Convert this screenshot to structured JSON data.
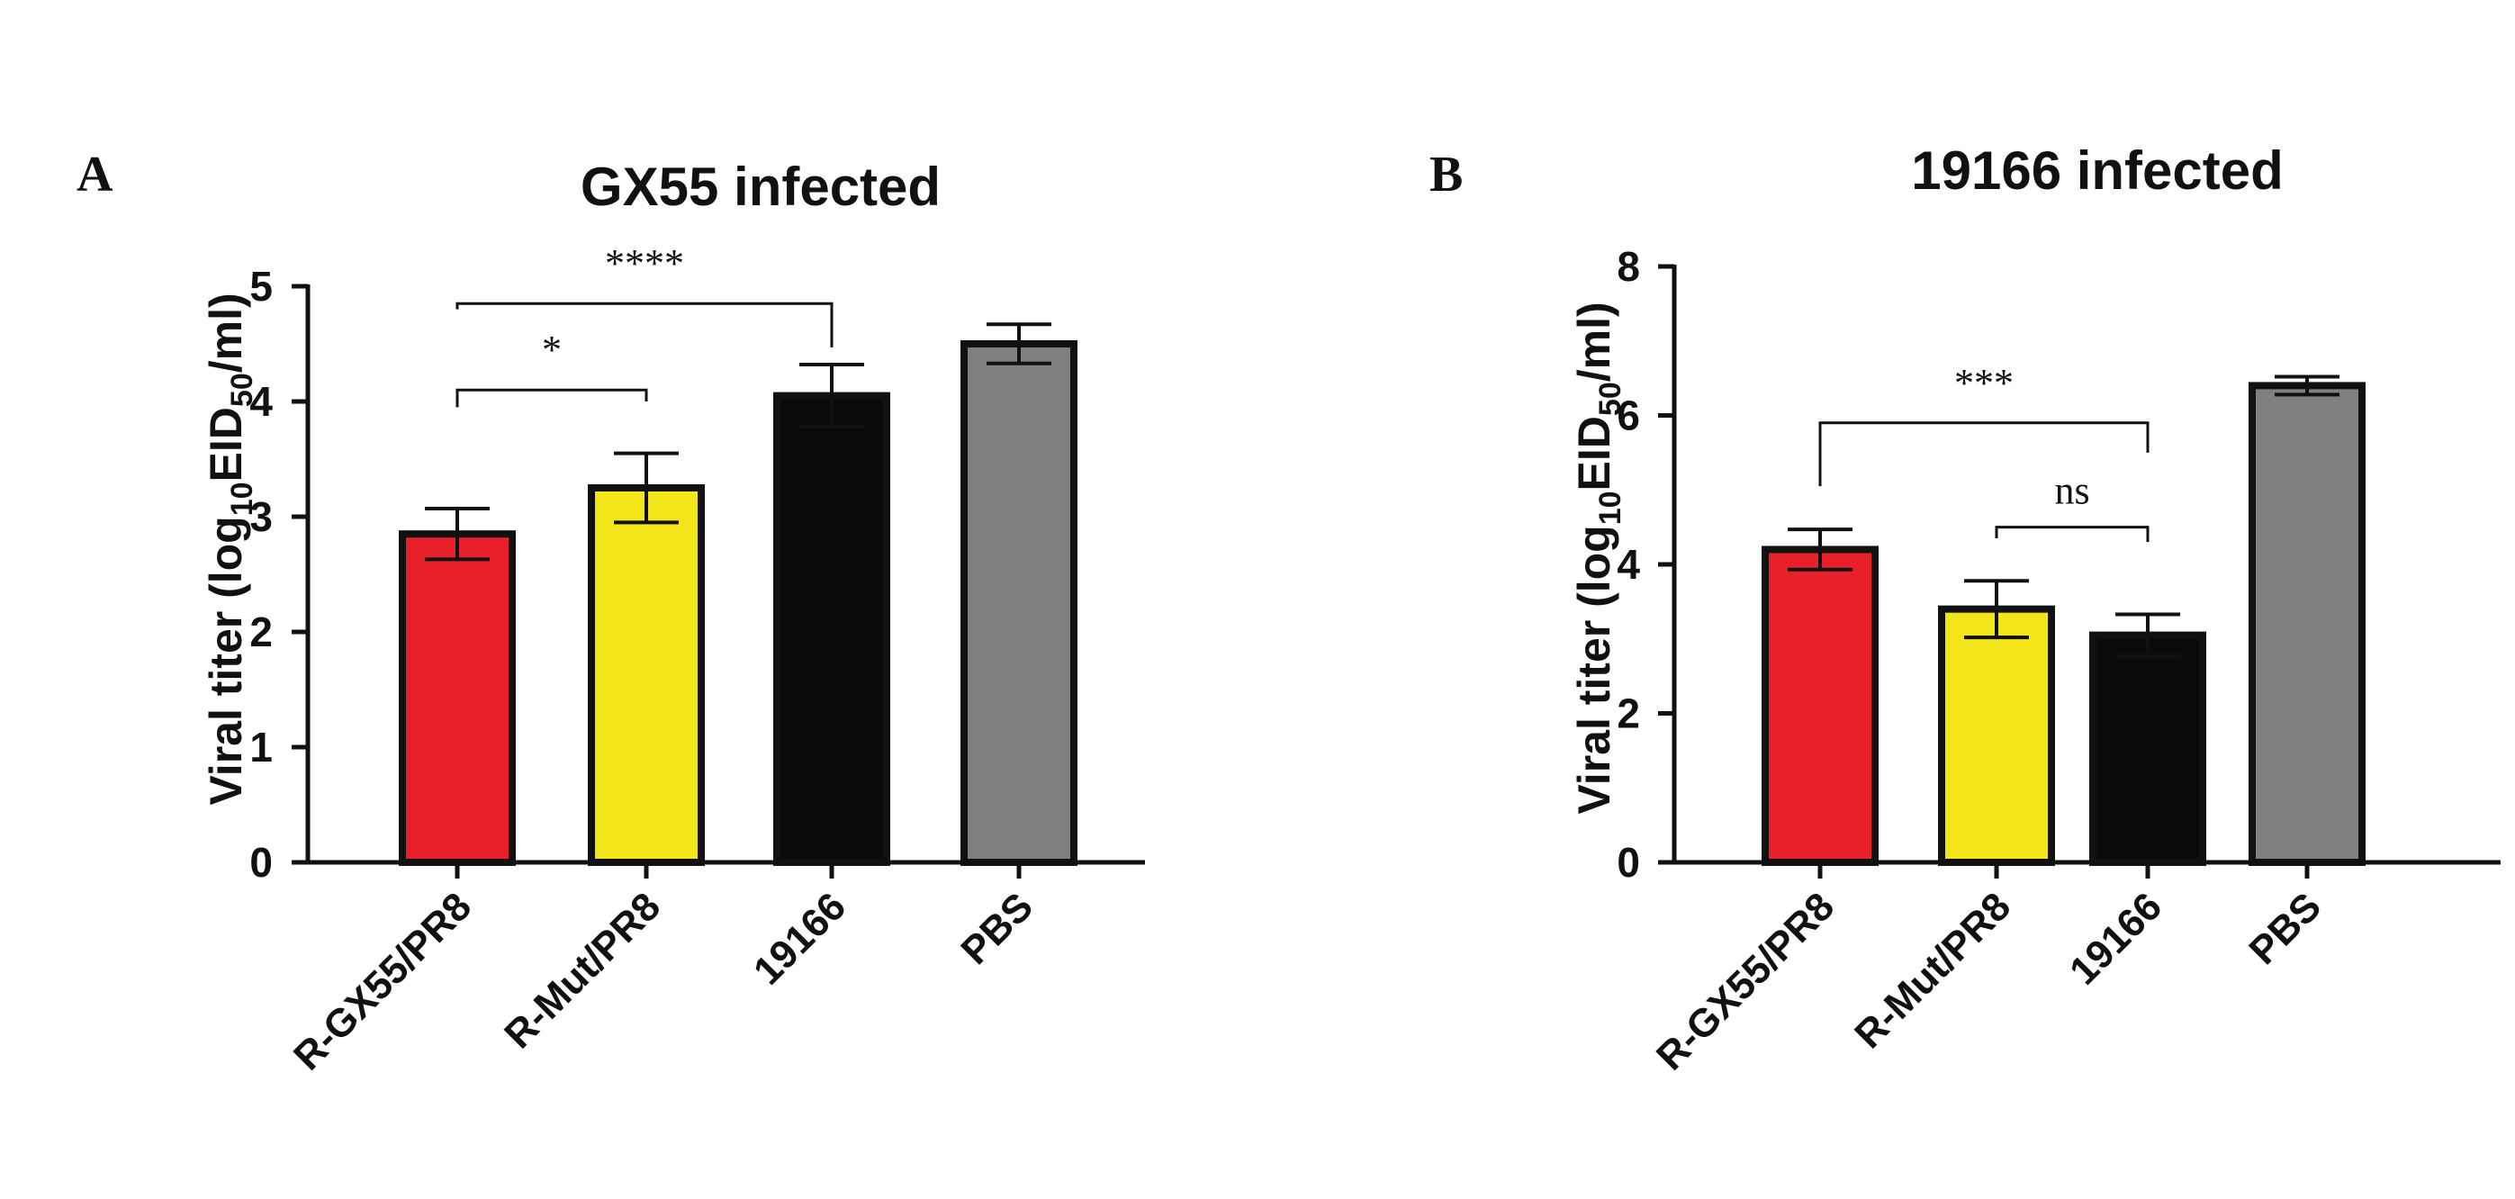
{
  "chart_data": [
    {
      "type": "bar",
      "panel": "A",
      "title": "GX55 infected",
      "ylabel_prefix": "Viral titer (log",
      "ylabel_sub1": "10",
      "ylabel_mid": "EID",
      "ylabel_sub2": "50",
      "ylabel_suffix": "/ml)",
      "ylim": [
        0,
        5
      ],
      "yticks": [
        0,
        1,
        2,
        3,
        4,
        5
      ],
      "categories": [
        "R-GX55/PR8",
        "R-Mut/PR8",
        "19166",
        "PBS"
      ],
      "values": [
        2.85,
        3.25,
        4.05,
        4.5
      ],
      "errors": [
        0.22,
        0.3,
        0.27,
        0.17
      ],
      "colors": [
        "#e8202a",
        "#f2e61a",
        "#0a0a0a",
        "#808080"
      ],
      "significance": [
        {
          "from": 0,
          "to": 2,
          "label": "****",
          "y": 4.85,
          "drop_left": 0.05,
          "drop_right": 0.38
        },
        {
          "from": 0,
          "to": 1,
          "label": "*",
          "y": 4.1,
          "drop_left": 0.15,
          "drop_right": 0.1
        }
      ]
    },
    {
      "type": "bar",
      "panel": "B",
      "title": "19166 infected",
      "ylabel_prefix": "Viral titer (log",
      "ylabel_sub1": "10",
      "ylabel_mid": "EID",
      "ylabel_sub2": "50",
      "ylabel_suffix": "/ml)",
      "ylim": [
        0,
        8
      ],
      "yticks": [
        0,
        2,
        4,
        6,
        8
      ],
      "categories": [
        "R-GX55/PR8",
        "R-Mut/PR8",
        "19166",
        "PBS"
      ],
      "values": [
        4.2,
        3.4,
        3.05,
        6.4
      ],
      "errors": [
        0.27,
        0.38,
        0.28,
        0.12
      ],
      "colors": [
        "#e8202a",
        "#f2e61a",
        "#0a0a0a",
        "#808080"
      ],
      "significance": [
        {
          "from": 0,
          "to": 2,
          "label": "***",
          "y": 5.9,
          "drop_left": 0.85,
          "drop_right": 0.4
        },
        {
          "from": 1,
          "to": 2,
          "label": "ns",
          "y": 4.5,
          "drop_left": 0.15,
          "drop_right": 0.2
        }
      ]
    }
  ]
}
